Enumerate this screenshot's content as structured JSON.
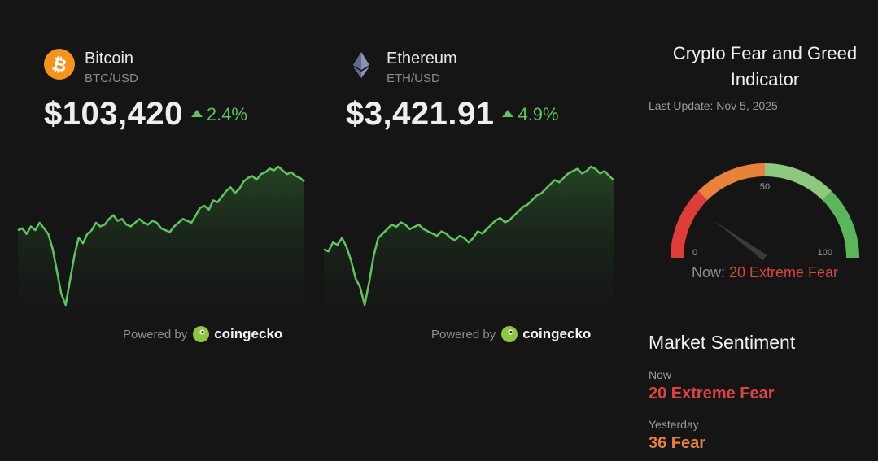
{
  "coins": [
    {
      "name": "Bitcoin",
      "pair": "BTC/USD",
      "price": "$103,420",
      "change": "2.4%",
      "icon": "bitcoin-icon",
      "color": "#f7931a",
      "powered_by": "Powered by",
      "brand": "coingecko",
      "chart_data": {
        "type": "area",
        "values": [
          62,
          63,
          60,
          64,
          62,
          66,
          63,
          60,
          52,
          40,
          28,
          22,
          35,
          48,
          58,
          55,
          60,
          62,
          66,
          64,
          65,
          68,
          70,
          67,
          68,
          65,
          64,
          66,
          68,
          66,
          65,
          67,
          66,
          63,
          62,
          61,
          64,
          66,
          68,
          67,
          66,
          70,
          74,
          75,
          73,
          78,
          77,
          80,
          83,
          85,
          82,
          84,
          88,
          90,
          91,
          89,
          92,
          93,
          95,
          94,
          96,
          94,
          92,
          93,
          91,
          90,
          88
        ]
      }
    },
    {
      "name": "Ethereum",
      "pair": "ETH/USD",
      "price": "$3,421.91",
      "change": "4.9%",
      "icon": "ethereum-icon",
      "color": "#8a92b2",
      "powered_by": "Powered by",
      "brand": "coingecko",
      "chart_data": {
        "type": "area",
        "values": [
          55,
          54,
          58,
          57,
          60,
          56,
          50,
          42,
          38,
          30,
          40,
          52,
          60,
          62,
          64,
          66,
          65,
          67,
          66,
          64,
          65,
          66,
          64,
          63,
          62,
          61,
          63,
          62,
          60,
          59,
          61,
          60,
          58,
          60,
          63,
          62,
          64,
          66,
          68,
          69,
          67,
          68,
          70,
          72,
          74,
          75,
          77,
          79,
          80,
          82,
          84,
          86,
          85,
          87,
          89,
          90,
          91,
          89,
          90,
          92,
          91,
          89,
          90,
          88,
          86
        ]
      }
    }
  ],
  "fear_greed": {
    "title_line1": "Crypto Fear and Greed",
    "title_line2": "Indicator",
    "last_update": "Last Update: Nov 5, 2025",
    "gauge": {
      "min_label": "0",
      "mid_label": "50",
      "max_label": "100",
      "value": 20,
      "colors": [
        "#e03c3a",
        "#e8823a",
        "#8ec77e",
        "#5bb55a"
      ]
    },
    "now_label": "Now:",
    "now_value": "20 Extreme Fear"
  },
  "market_sentiment": {
    "title": "Market Sentiment",
    "now_label": "Now",
    "now_value": "20 Extreme Fear",
    "now_color": "#dd4441",
    "yesterday_label": "Yesterday",
    "yesterday_value": "36 Fear",
    "yesterday_color": "#e8823a"
  }
}
